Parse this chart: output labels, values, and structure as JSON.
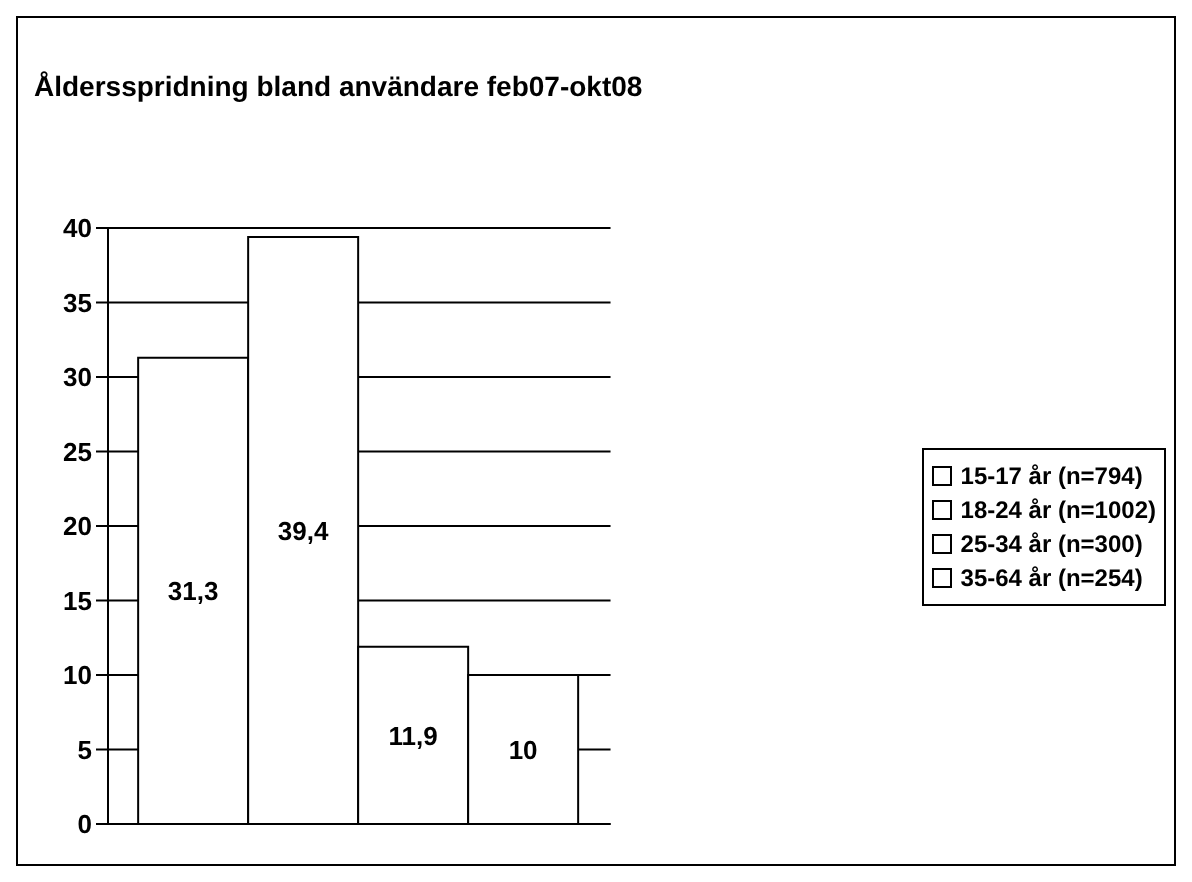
{
  "chart_data": {
    "type": "bar",
    "title": "Åldersspridning bland användare feb07-okt08",
    "categories": [
      null
    ],
    "series": [
      {
        "name": "15-17 år (n=794)",
        "color": "#ffffff",
        "values": [
          31.3
        ],
        "value_labels": [
          "31,3"
        ]
      },
      {
        "name": "18-24 år (n=1002)",
        "color": "#ffffff",
        "values": [
          39.4
        ],
        "value_labels": [
          "39,4"
        ]
      },
      {
        "name": "25-34 år (n=300)",
        "color": "#ffffff",
        "values": [
          11.9
        ],
        "value_labels": [
          "11,9"
        ]
      },
      {
        "name": "35-64 år (n=254)",
        "color": "#ffffff",
        "values": [
          10
        ],
        "value_labels": [
          "10"
        ]
      }
    ],
    "ylim": [
      0,
      40
    ],
    "yticks": [
      0,
      5,
      10,
      15,
      20,
      25,
      30,
      35,
      40
    ],
    "grid": "y",
    "legend": "right"
  }
}
